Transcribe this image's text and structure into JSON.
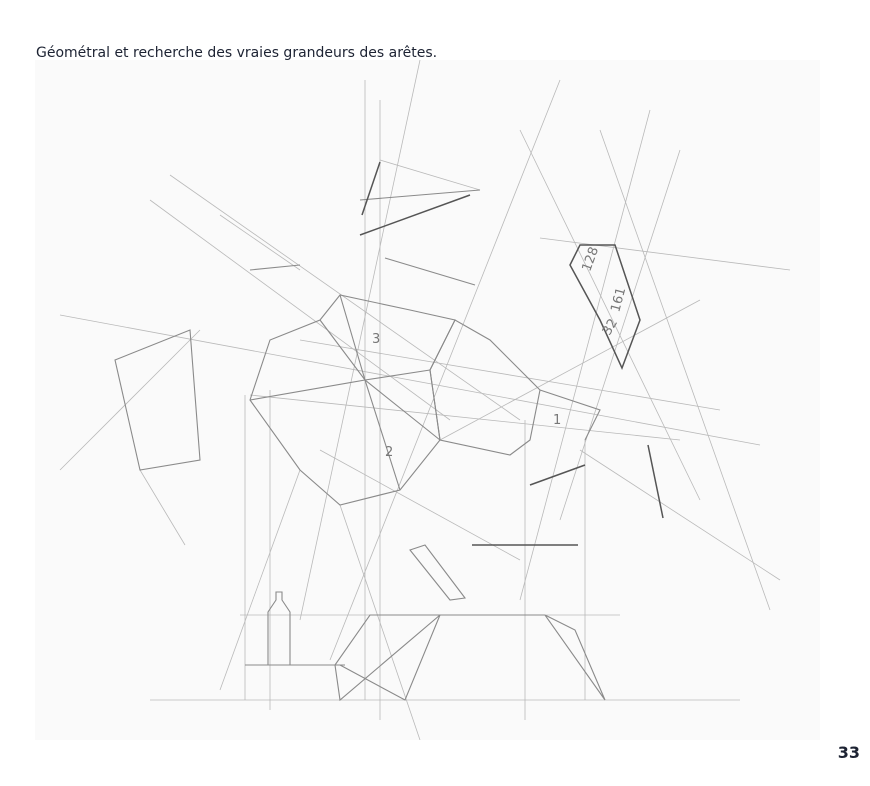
{
  "caption": "Géométral et recherche des vraies grandeurs des arêtes.",
  "page_number": "33",
  "sketch_labels": [
    "3",
    "2",
    "1",
    "128",
    "161",
    "32"
  ]
}
